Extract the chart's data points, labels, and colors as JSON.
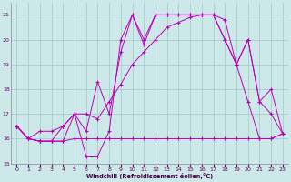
{
  "xlabel": "Windchill (Refroidissement éolien,°C)",
  "bg_color": "#cce8e8",
  "line_color": "#bb00bb",
  "grid_color": "#aacccc",
  "xlim": [
    -0.5,
    23.5
  ],
  "ylim": [
    15,
    21.5
  ],
  "yticks": [
    15,
    16,
    17,
    18,
    19,
    20,
    21
  ],
  "xticks": [
    0,
    1,
    2,
    3,
    4,
    5,
    6,
    7,
    8,
    9,
    10,
    11,
    12,
    13,
    14,
    15,
    16,
    17,
    18,
    19,
    20,
    21,
    22,
    23
  ],
  "series": [
    {
      "x": [
        0,
        1,
        2,
        3,
        4,
        5,
        6,
        7,
        8,
        9,
        10,
        11,
        12,
        13,
        14,
        15,
        16,
        17,
        18,
        19,
        20,
        21,
        22,
        23
      ],
      "y": [
        16.5,
        16.0,
        15.9,
        15.9,
        15.9,
        16.0,
        16.0,
        16.0,
        16.0,
        16.0,
        16.0,
        16.0,
        16.0,
        16.0,
        16.0,
        16.0,
        16.0,
        16.0,
        16.0,
        16.0,
        16.0,
        16.0,
        16.0,
        16.2
      ]
    },
    {
      "x": [
        0,
        1,
        2,
        3,
        4,
        5,
        6,
        7,
        8,
        9,
        10,
        11,
        12,
        13,
        14,
        15,
        16,
        17,
        18,
        19,
        20,
        21,
        22,
        23
      ],
      "y": [
        16.5,
        16.0,
        15.9,
        15.9,
        16.5,
        17.0,
        15.3,
        15.3,
        16.3,
        20.0,
        21.0,
        19.8,
        21.0,
        21.0,
        21.0,
        21.0,
        21.0,
        21.0,
        20.8,
        19.0,
        20.0,
        17.5,
        18.0,
        16.2
      ]
    },
    {
      "x": [
        0,
        1,
        2,
        3,
        4,
        5,
        6,
        7,
        8,
        9,
        10,
        11,
        12,
        13,
        14,
        15,
        16,
        17,
        18,
        19,
        20,
        21,
        22,
        23
      ],
      "y": [
        16.5,
        16.0,
        15.9,
        15.9,
        15.9,
        17.0,
        16.3,
        18.3,
        17.0,
        19.5,
        21.0,
        20.0,
        21.0,
        21.0,
        21.0,
        21.0,
        21.0,
        21.0,
        20.0,
        19.0,
        17.5,
        16.0,
        16.0,
        16.2
      ]
    },
    {
      "x": [
        0,
        1,
        2,
        3,
        4,
        5,
        6,
        7,
        8,
        9,
        10,
        11,
        12,
        13,
        14,
        15,
        16,
        17,
        18,
        19,
        20,
        21,
        22,
        23
      ],
      "y": [
        16.5,
        16.0,
        16.3,
        16.3,
        16.5,
        17.0,
        17.0,
        16.8,
        17.5,
        18.2,
        19.0,
        19.5,
        20.0,
        20.5,
        20.7,
        20.9,
        21.0,
        21.0,
        20.0,
        19.0,
        20.0,
        17.5,
        17.0,
        16.2
      ]
    }
  ]
}
